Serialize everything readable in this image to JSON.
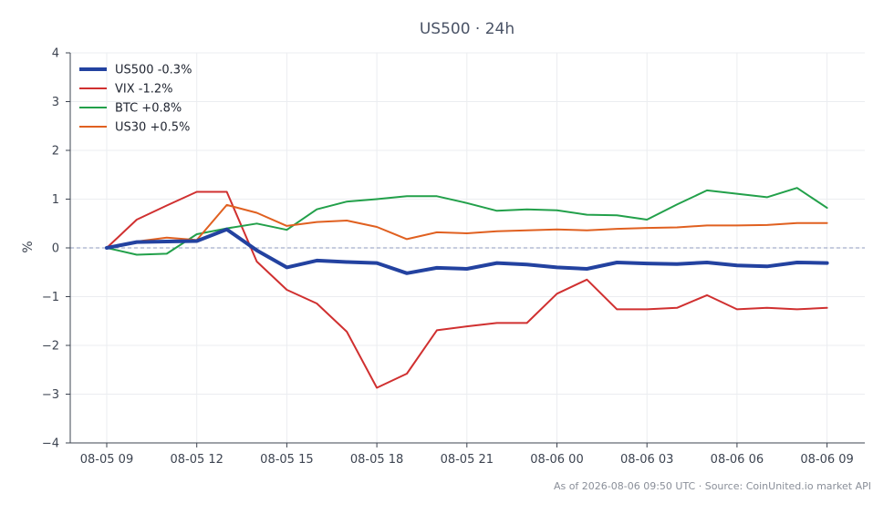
{
  "chart_data": {
    "type": "line",
    "title": "US500 · 24h",
    "xlabel": "",
    "ylabel": "%",
    "ylim": [
      -4,
      4
    ],
    "yticks": [
      4,
      3,
      2,
      1,
      0,
      -1,
      -2,
      -3,
      -4
    ],
    "ytick_labels": [
      "4",
      "3",
      "2",
      "1",
      "0",
      "−1",
      "−2",
      "−3",
      "−4"
    ],
    "xticks": [
      "08-05 09",
      "08-05 12",
      "08-05 15",
      "08-05 18",
      "08-05 21",
      "08-06 00",
      "08-06 03",
      "08-06 06",
      "08-06 09"
    ],
    "x": [
      "08-05 09",
      "08-05 10",
      "08-05 11",
      "08-05 12",
      "08-05 13",
      "08-05 14",
      "08-05 15",
      "08-05 16",
      "08-05 17",
      "08-05 18",
      "08-05 19",
      "08-05 20",
      "08-05 21",
      "08-05 22",
      "08-05 23",
      "08-06 00",
      "08-06 01",
      "08-06 02",
      "08-06 03",
      "08-06 04",
      "08-06 05",
      "08-06 06",
      "08-06 07",
      "08-06 08",
      "08-06 09"
    ],
    "grid": true,
    "zero_line": true,
    "legend_position": "top-left",
    "series": [
      {
        "name": "US500 -0.3%",
        "color": "#2342a0",
        "values": [
          0.0,
          0.12,
          0.13,
          0.14,
          0.38,
          -0.05,
          -0.4,
          -0.26,
          -0.29,
          -0.31,
          -0.52,
          -0.41,
          -0.43,
          -0.31,
          -0.34,
          -0.4,
          -0.43,
          -0.3,
          -0.32,
          -0.33,
          -0.3,
          -0.36,
          -0.38,
          -0.3,
          -0.31
        ]
      },
      {
        "name": "VIX -1.2%",
        "color": "#d03030",
        "values": [
          0.0,
          0.58,
          0.87,
          1.15,
          1.15,
          -0.28,
          -0.86,
          -1.14,
          -1.72,
          -2.87,
          -2.58,
          -1.69,
          -1.61,
          -1.54,
          -1.54,
          -0.94,
          -0.65,
          -1.26,
          -1.26,
          -1.23,
          -0.97,
          -1.26,
          -1.23,
          -1.26,
          -1.23
        ]
      },
      {
        "name": "BTC +0.8%",
        "color": "#22a04a",
        "values": [
          0.0,
          -0.14,
          -0.12,
          0.28,
          0.4,
          0.5,
          0.37,
          0.79,
          0.95,
          1.0,
          1.06,
          1.06,
          0.92,
          0.76,
          0.79,
          0.77,
          0.68,
          0.67,
          0.58,
          0.89,
          1.18,
          1.11,
          1.04,
          1.23,
          0.82
        ]
      },
      {
        "name": "US30 +0.5%",
        "color": "#e06020",
        "values": [
          0.0,
          0.13,
          0.21,
          0.16,
          0.88,
          0.72,
          0.45,
          0.53,
          0.56,
          0.43,
          0.18,
          0.32,
          0.3,
          0.34,
          0.36,
          0.38,
          0.36,
          0.39,
          0.41,
          0.42,
          0.46,
          0.46,
          0.47,
          0.51,
          0.51
        ]
      }
    ],
    "footer": "As of 2026-08-06 09:50 UTC · Source: CoinUnited.io market API"
  }
}
